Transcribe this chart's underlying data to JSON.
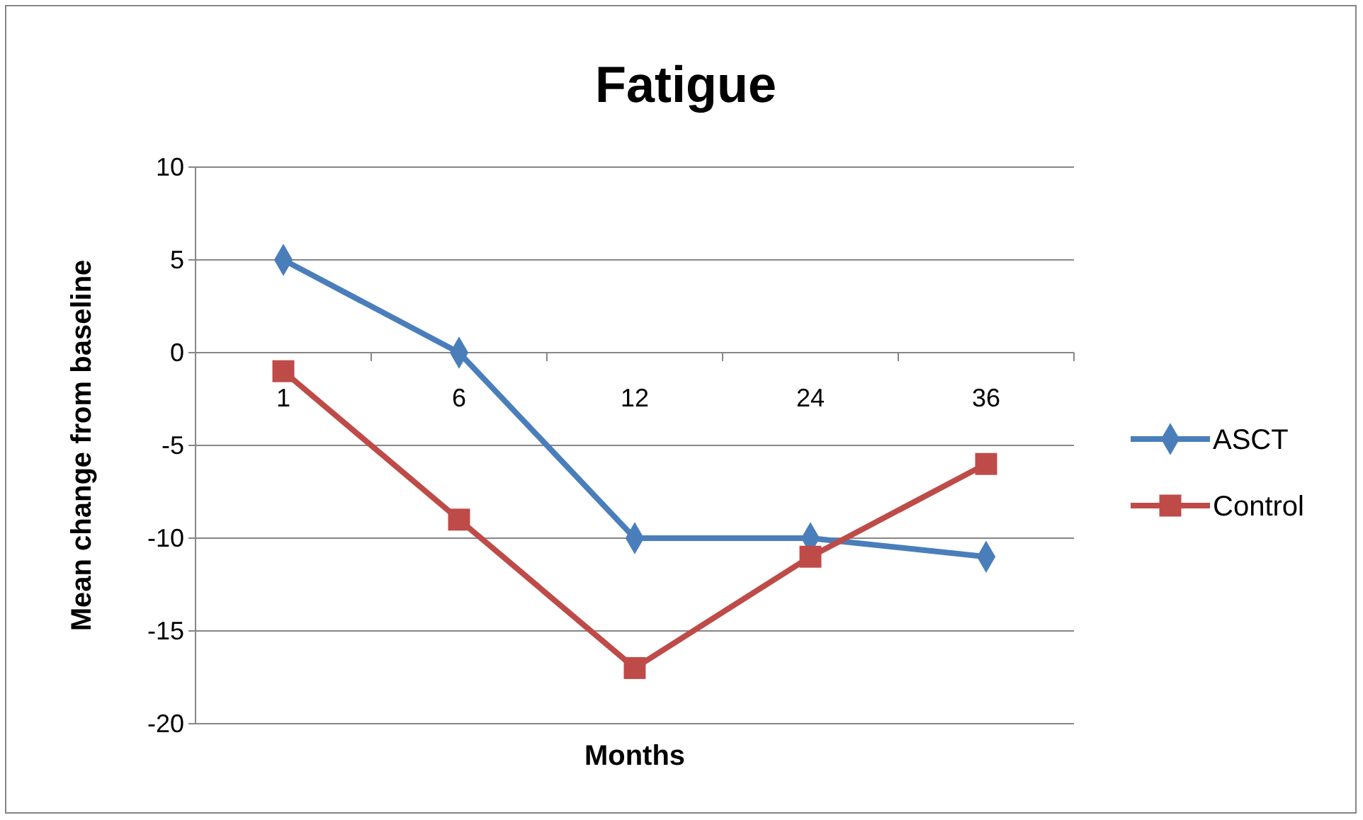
{
  "chart_data": {
    "type": "line",
    "title": "Fatigue",
    "xlabel": "Months",
    "ylabel": "Mean change from baseline",
    "categories": [
      "1",
      "6",
      "12",
      "24",
      "36"
    ],
    "series": [
      {
        "name": "ASCT",
        "color": "#4a7ebb",
        "marker": "diamond",
        "values": [
          5,
          0,
          -10,
          -10,
          -11
        ]
      },
      {
        "name": "Control",
        "color": "#be4b48",
        "marker": "square",
        "values": [
          -1,
          -9,
          -17,
          -11,
          -6
        ]
      }
    ],
    "ylim": [
      -20,
      10
    ],
    "yticks": [
      -20,
      -15,
      -10,
      -5,
      0,
      5,
      10
    ],
    "grid": "y",
    "legend": "right"
  }
}
